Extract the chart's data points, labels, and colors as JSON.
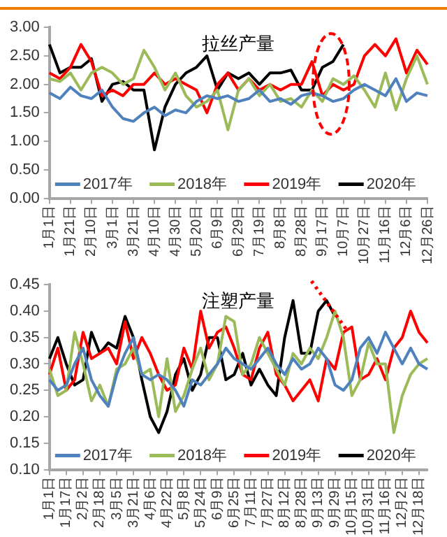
{
  "chart_data": [
    {
      "type": "line",
      "title": "拉丝产量",
      "categories": [
        "1月1日",
        null,
        "1月21日",
        null,
        "2月10日",
        null,
        "3月1日",
        null,
        "3月21日",
        null,
        "4月10日",
        null,
        "4月30日",
        null,
        "5月20日",
        null,
        "6月9日",
        null,
        "6月29日",
        null,
        "7月19日",
        null,
        "8月8日",
        null,
        "8月28日",
        null,
        "9月17日",
        null,
        "10月7日",
        null,
        "10月27日",
        null,
        "11月16日",
        null,
        "12月6日",
        null,
        "12月26日"
      ],
      "series": [
        {
          "name": "2017年",
          "color": "#4f81bd",
          "values": [
            1.85,
            1.75,
            1.95,
            1.8,
            1.75,
            1.9,
            1.6,
            1.4,
            1.35,
            1.5,
            1.6,
            1.45,
            1.55,
            1.5,
            1.7,
            1.8,
            1.75,
            1.8,
            1.7,
            1.75,
            1.9,
            1.7,
            1.75,
            1.65,
            1.8,
            1.85,
            1.8,
            1.7,
            1.75,
            1.9,
            2.0,
            1.9,
            1.8,
            2.1,
            1.7,
            1.85,
            1.8
          ]
        },
        {
          "name": "2018年",
          "color": "#9bbb59",
          "values": [
            2.1,
            2.05,
            2.2,
            1.9,
            2.2,
            2.3,
            2.2,
            2.0,
            2.1,
            2.6,
            2.3,
            1.9,
            2.2,
            1.8,
            1.6,
            1.7,
            1.9,
            1.2,
            1.9,
            2.1,
            1.8,
            2.0,
            1.7,
            1.75,
            1.6,
            1.9,
            1.7,
            2.1,
            2.0,
            2.15,
            1.9,
            1.6,
            2.2,
            1.55,
            2.1,
            2.5,
            2.0
          ]
        },
        {
          "name": "2019年",
          "color": "#ff0000",
          "values": [
            2.2,
            2.1,
            2.3,
            2.7,
            2.4,
            1.8,
            1.9,
            1.8,
            2.0,
            2.0,
            2.2,
            2.0,
            2.1,
            2.0,
            1.9,
            1.5,
            2.0,
            2.2,
            1.9,
            2.1,
            1.9,
            2.0,
            1.9,
            2.0,
            2.0,
            2.4,
            1.8,
            2.0,
            1.9,
            2.0,
            2.5,
            2.7,
            2.5,
            2.8,
            2.2,
            2.6,
            2.35
          ]
        },
        {
          "name": "2020年",
          "color": "#000000",
          "values": [
            2.7,
            2.2,
            2.3,
            2.3,
            2.45,
            1.7,
            2.0,
            2.05,
            1.9,
            1.9,
            0.85,
            1.6,
            2.0,
            2.2,
            2.3,
            2.5,
            1.9,
            2.2,
            2.1,
            2.2,
            2.0,
            2.2,
            2.2,
            2.25,
            1.9,
            1.9,
            2.3,
            2.4,
            2.7,
            null,
            null,
            null,
            null,
            null,
            null,
            null,
            null
          ]
        }
      ],
      "ylim": [
        0,
        3
      ],
      "yticks": [
        {
          "value": 0,
          "label": "0.00"
        },
        {
          "value": 0.5,
          "label": "0.50"
        },
        {
          "value": 1,
          "label": "1.00"
        },
        {
          "value": 1.5,
          "label": "1.50"
        },
        {
          "value": 2,
          "label": "2.00"
        },
        {
          "value": 2.5,
          "label": "2.50"
        },
        {
          "value": 3,
          "label": "3.00"
        }
      ],
      "grid": false,
      "legend": "bottom",
      "marker": "none",
      "line_style": "solid"
    },
    {
      "type": "line",
      "title": "注塑产量",
      "categories": [
        "1月1日",
        null,
        "1月17日",
        null,
        "2月2日",
        null,
        "2月18日",
        null,
        "3月5日",
        null,
        "3月21日",
        null,
        "4月6日",
        null,
        "4月22日",
        null,
        "5月8日",
        null,
        "5月24日",
        null,
        "6月9日",
        null,
        "6月25日",
        null,
        "7月11日",
        null,
        "7月27日",
        null,
        "8月12日",
        null,
        "8月28日",
        null,
        "9月13日",
        null,
        "9月29日",
        null,
        "10月15日",
        null,
        "10月31日",
        null,
        "11月16日",
        null,
        "12月2日",
        null,
        "12月18日",
        null
      ],
      "series": [
        {
          "name": "2017年",
          "color": "#4f81bd",
          "values": [
            0.27,
            0.25,
            0.26,
            0.3,
            0.33,
            0.27,
            0.24,
            0.22,
            0.28,
            0.32,
            0.35,
            0.28,
            0.27,
            0.28,
            0.27,
            0.25,
            0.22,
            0.27,
            0.26,
            0.28,
            0.3,
            0.33,
            0.31,
            0.3,
            0.29,
            0.31,
            0.33,
            0.3,
            0.28,
            0.31,
            0.29,
            0.3,
            0.33,
            0.31,
            0.26,
            0.25,
            0.27,
            0.33,
            0.35,
            0.32,
            0.36,
            0.33,
            0.3,
            0.33,
            0.3,
            0.29
          ]
        },
        {
          "name": "2018年",
          "color": "#9bbb59",
          "values": [
            0.29,
            0.24,
            0.25,
            0.36,
            0.3,
            0.23,
            0.26,
            0.22,
            0.29,
            0.3,
            0.33,
            0.28,
            0.29,
            0.2,
            0.31,
            0.21,
            0.24,
            0.29,
            0.33,
            0.27,
            0.3,
            0.39,
            0.38,
            0.28,
            0.3,
            0.35,
            0.32,
            0.29,
            0.26,
            0.32,
            0.3,
            0.33,
            0.31,
            0.35,
            0.4,
            0.35,
            0.24,
            0.27,
            0.34,
            0.3,
            0.3,
            0.17,
            0.24,
            0.28,
            0.3,
            0.31
          ]
        },
        {
          "name": "2019年",
          "color": "#ff0000",
          "values": [
            0.28,
            0.33,
            0.25,
            0.27,
            0.36,
            0.31,
            0.32,
            0.33,
            0.3,
            0.38,
            0.31,
            0.35,
            0.32,
            0.28,
            0.25,
            0.26,
            0.33,
            0.29,
            0.4,
            0.33,
            0.36,
            0.37,
            0.33,
            0.28,
            0.27,
            0.33,
            0.36,
            0.28,
            0.26,
            0.23,
            0.25,
            0.27,
            0.23,
            0.31,
            0.29,
            0.36,
            0.37,
            0.27,
            0.28,
            0.31,
            0.27,
            0.33,
            0.35,
            0.4,
            0.36,
            0.34
          ]
        },
        {
          "name": "2020年",
          "color": "#000000",
          "values": [
            0.31,
            0.35,
            0.3,
            0.26,
            0.27,
            0.36,
            0.32,
            0.34,
            0.33,
            0.39,
            0.35,
            0.27,
            0.2,
            0.17,
            0.21,
            0.28,
            0.31,
            0.25,
            0.28,
            0.35,
            0.35,
            0.27,
            0.28,
            0.32,
            0.26,
            0.29,
            0.26,
            0.24,
            0.35,
            0.42,
            0.32,
            0.32,
            0.4,
            0.42,
            0.39,
            null,
            null,
            null,
            null,
            null,
            null,
            null,
            null,
            null,
            null,
            null
          ]
        }
      ],
      "ylim": [
        0.1,
        0.45
      ],
      "yticks": [
        {
          "value": 0.1,
          "label": "0.10"
        },
        {
          "value": 0.15,
          "label": "0.15"
        },
        {
          "value": 0.2,
          "label": "0.20"
        },
        {
          "value": 0.25,
          "label": "0.25"
        },
        {
          "value": 0.3,
          "label": "0.30"
        },
        {
          "value": 0.35,
          "label": "0.35"
        },
        {
          "value": 0.4,
          "label": "0.40"
        },
        {
          "value": 0.45,
          "label": "0.45"
        }
      ],
      "grid": false,
      "legend": "bottom",
      "marker": "none",
      "line_style": "solid"
    }
  ]
}
